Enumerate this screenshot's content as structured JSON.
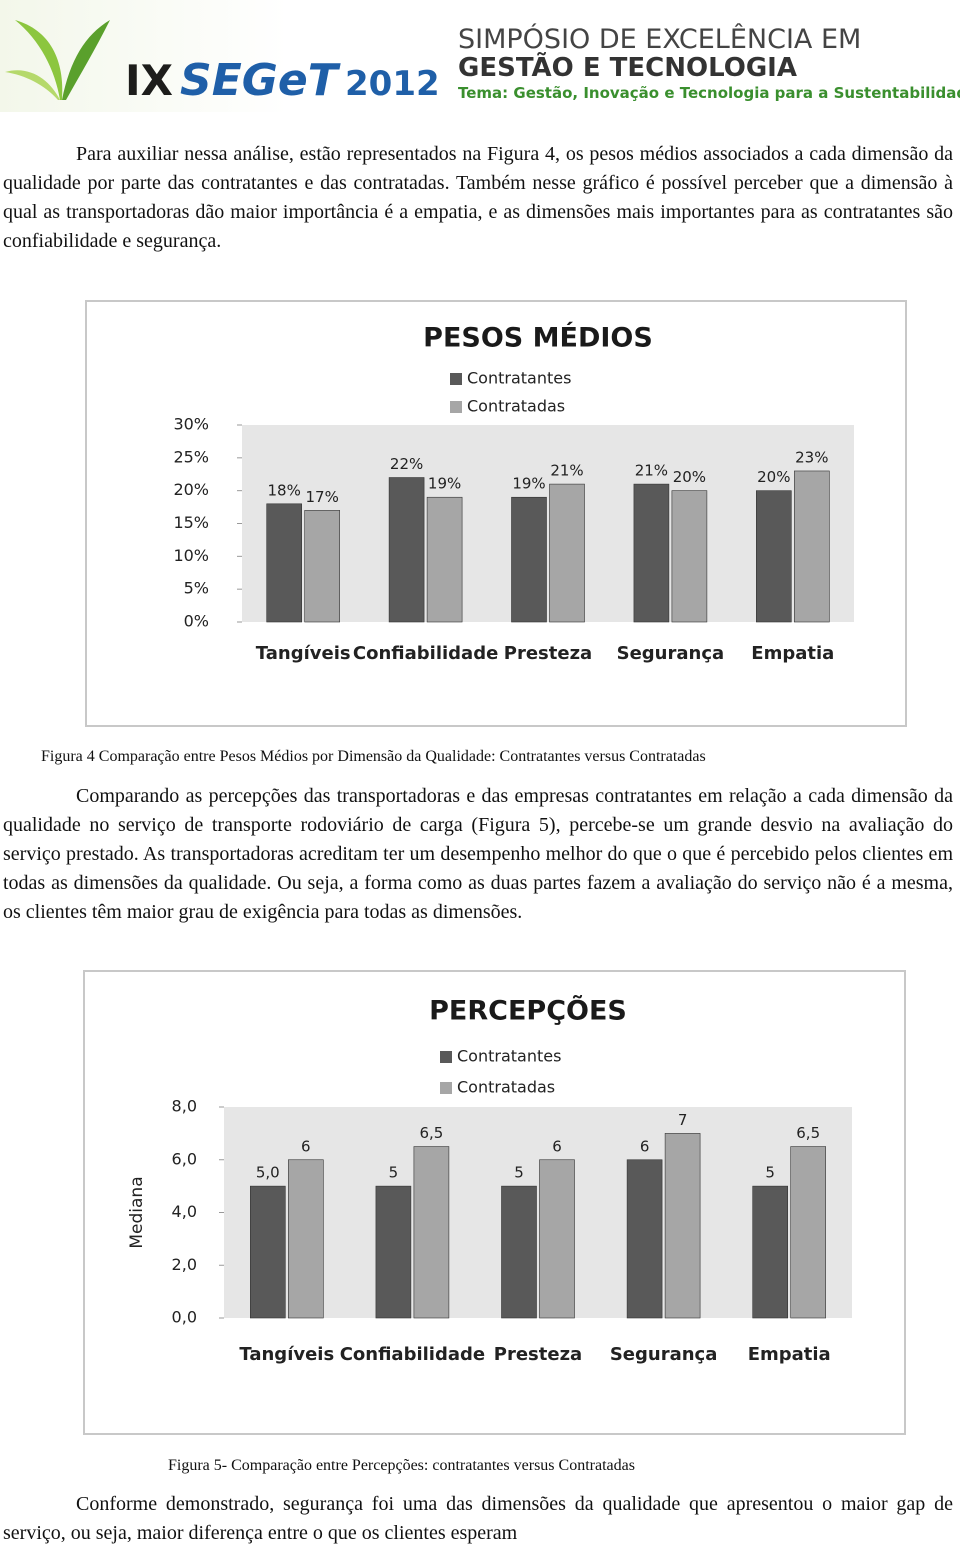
{
  "header": {
    "logo_roman": "IX",
    "logo_name": "SEGeT",
    "logo_year": "2012",
    "line1": "SIMPÓSIO DE EXCELÊNCIA EM",
    "line2": "GESTÃO E TECNOLOGIA",
    "theme": "Tema: Gestão, Inovação e Tecnologia para a Sustentabilidade"
  },
  "paragraphs": [
    "Para auxiliar nessa análise, estão representados na Figura 4, os pesos médios associados a cada dimensão da qualidade por parte das contratantes e das contratadas. Também nesse gráfico é possível perceber que a dimensão à qual as transportadoras dão maior importância é a empatia, e as dimensões mais importantes para as contratantes são confiabilidade e segurança.",
    "Comparando as percepções das transportadoras e das empresas contratantes em relação a cada dimensão da qualidade no serviço de transporte rodoviário de carga (Figura 5), percebe-se um grande desvio na avaliação do serviço prestado. As transportadoras acreditam ter um desempenho melhor do que o que é percebido pelos clientes em todas as dimensões da qualidade. Ou seja, a forma como as duas partes fazem a avaliação do serviço não é a mesma, os clientes têm maior grau de exigência para todas as dimensões.",
    "Conforme demonstrado, segurança foi uma das dimensões da qualidade que apresentou o maior gap de serviço, ou seja, maior diferença entre o que os clientes esperam"
  ],
  "captions": [
    "Figura 4 Comparação entre Pesos Médios por Dimensão da Qualidade: Contratantes versus Contratadas",
    "Figura 5-  Comparação entre Percepções: contratantes versus Contratadas"
  ],
  "chart_data": [
    {
      "type": "bar",
      "title": "PESOS MÉDIOS",
      "categories": [
        "Tangíveis",
        "Confiabilidade",
        "Presteza",
        "Segurança",
        "Empatia"
      ],
      "series": [
        {
          "name": "Contratantes",
          "color": "#595959",
          "values": [
            18,
            22,
            19,
            21,
            20
          ],
          "value_labels": [
            "18%",
            "22%",
            "19%",
            "21%",
            "20%"
          ]
        },
        {
          "name": "Contratadas",
          "color": "#a6a6a6",
          "values": [
            17,
            19,
            21,
            20,
            23
          ],
          "value_labels": [
            "17%",
            "19%",
            "21%",
            "20%",
            "23%"
          ]
        }
      ],
      "ylim": [
        0,
        30
      ],
      "yticks": [
        {
          "value": 0,
          "label": "0%"
        },
        {
          "value": 5,
          "label": "5%"
        },
        {
          "value": 10,
          "label": "10%"
        },
        {
          "value": 15,
          "label": "15%"
        },
        {
          "value": 20,
          "label": "20%"
        },
        {
          "value": 25,
          "label": "25%"
        },
        {
          "value": 30,
          "label": "30%"
        }
      ],
      "legend": "top"
    },
    {
      "type": "bar",
      "title": "PERCEPÇÕES",
      "y_label": "Mediana",
      "categories": [
        "Tangíveis",
        "Confiabilidade",
        "Presteza",
        "Segurança",
        "Empatia"
      ],
      "series": [
        {
          "name": "Contratantes",
          "color": "#595959",
          "values": [
            5,
            5,
            5,
            6,
            5
          ],
          "value_labels": [
            "5,0",
            "5",
            "5",
            "6",
            "5"
          ]
        },
        {
          "name": "Contratadas",
          "color": "#a6a6a6",
          "values": [
            6,
            6.5,
            6,
            7,
            6.5
          ],
          "value_labels": [
            "6",
            "6,5",
            "6",
            "7",
            "6,5"
          ]
        }
      ],
      "ylim": [
        0,
        8
      ],
      "yticks": [
        {
          "value": 0,
          "label": "0,0"
        },
        {
          "value": 2,
          "label": "2,0"
        },
        {
          "value": 4,
          "label": "4,0"
        },
        {
          "value": 6,
          "label": "6,0"
        },
        {
          "value": 8,
          "label": "8,0"
        }
      ],
      "legend": "top"
    }
  ]
}
